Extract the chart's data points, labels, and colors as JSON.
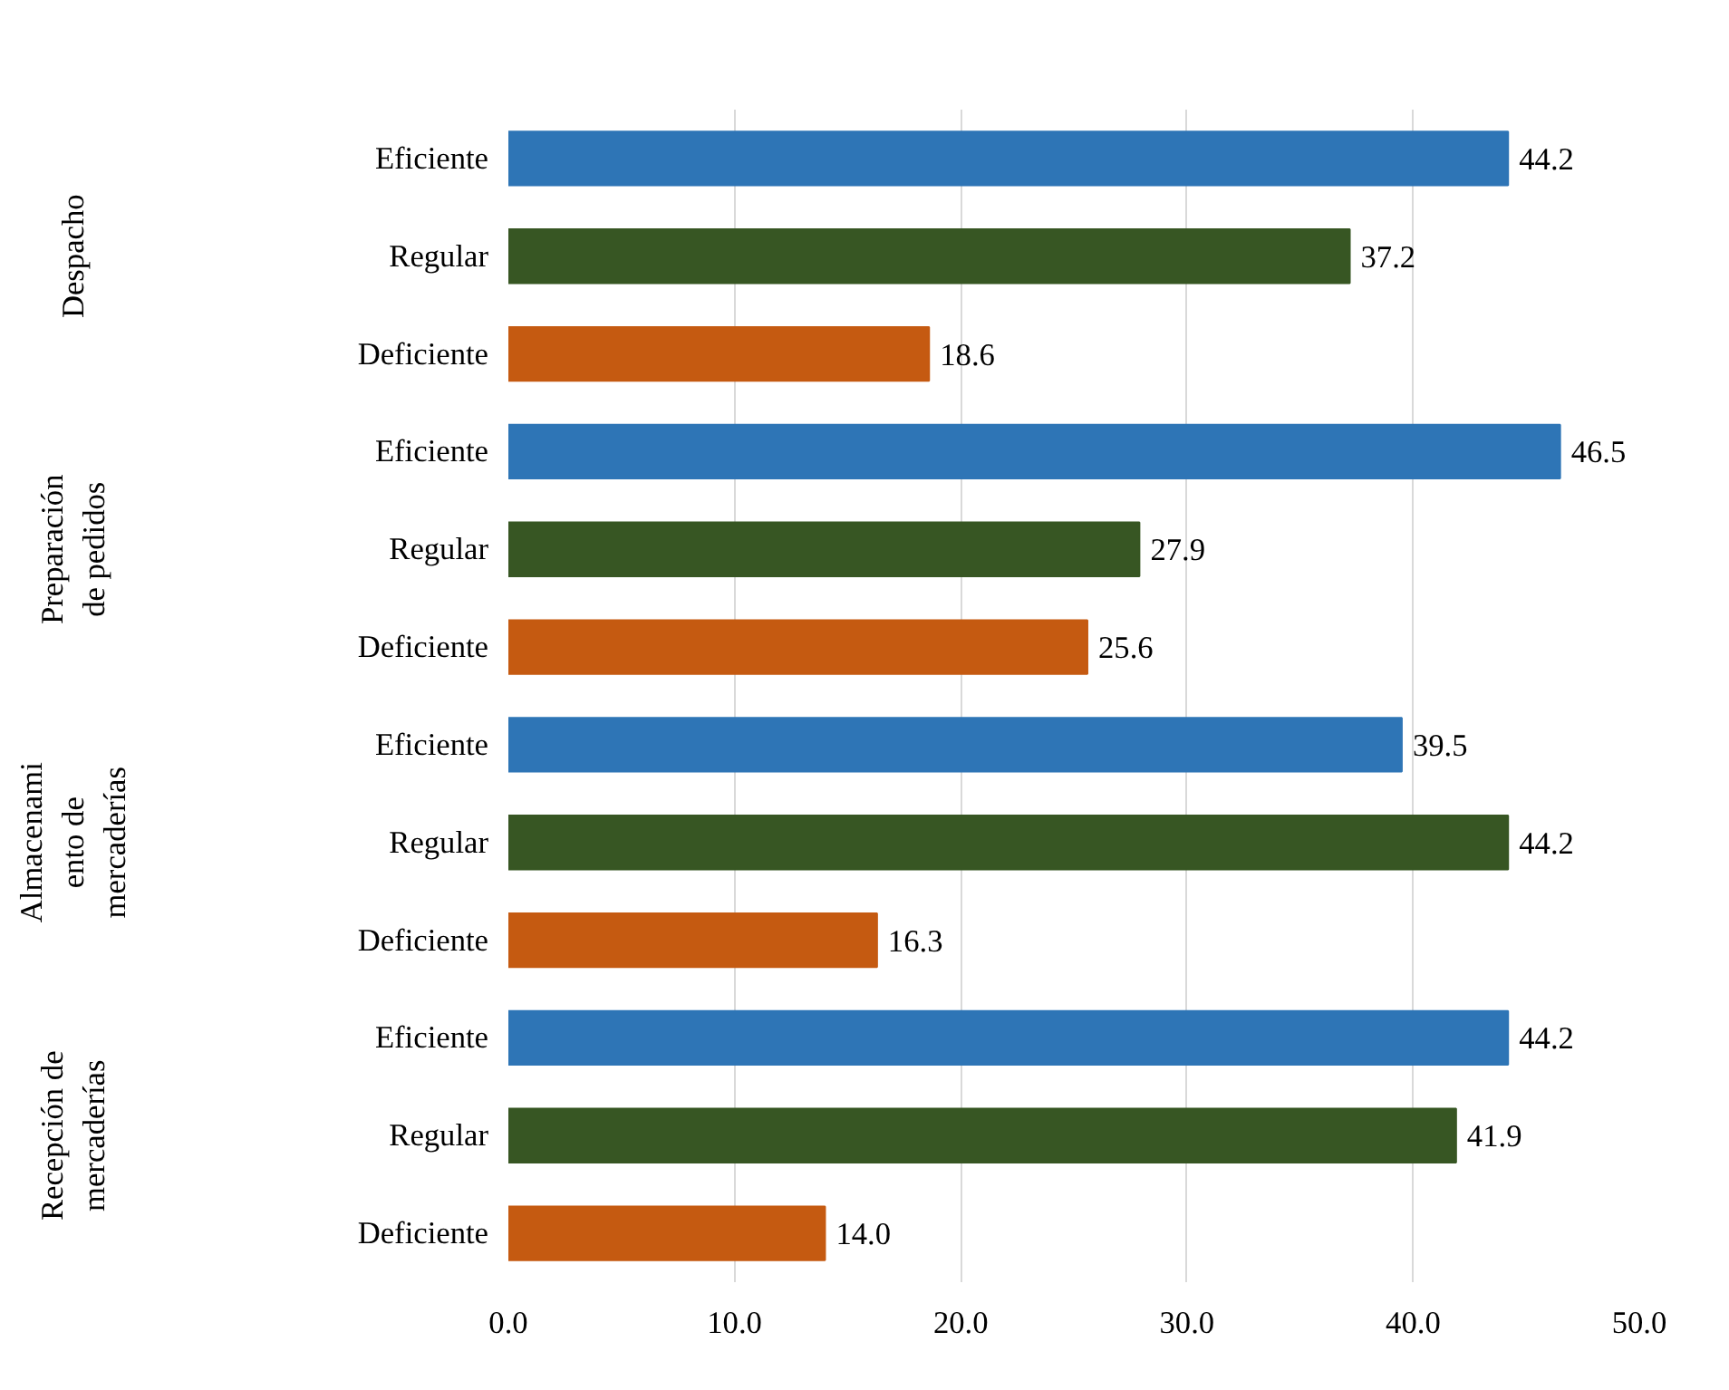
{
  "chart_data": {
    "type": "bar",
    "orientation": "horizontal",
    "categories": [
      "Eficiente",
      "Regular",
      "Deficiente",
      "Eficiente",
      "Regular",
      "Deficiente",
      "Eficiente",
      "Regular",
      "Deficiente",
      "Eficiente",
      "Regular",
      "Deficiente"
    ],
    "values": [
      44.2,
      37.2,
      18.6,
      46.5,
      27.9,
      25.6,
      39.5,
      44.2,
      16.3,
      44.2,
      41.9,
      14.0
    ],
    "value_labels": [
      "44.2",
      "37.2",
      "18.6",
      "46.5",
      "27.9",
      "25.6",
      "39.5",
      "44.2",
      "16.3",
      "44.2",
      "41.9",
      "14.0"
    ],
    "colors": [
      "#2e75b6",
      "#375623",
      "#c55a11",
      "#2e75b6",
      "#375623",
      "#c55a11",
      "#2e75b6",
      "#375623",
      "#c55a11",
      "#2e75b6",
      "#375623",
      "#c55a11"
    ],
    "annotations": [
      "Despacho",
      "Preparación\nde pedidos",
      "Almacenami\nento de\nmercaderías",
      "Recepción de\nmercaderías"
    ],
    "xlim": [
      0,
      50
    ],
    "xticks": [
      {
        "value": 0,
        "label": "0.0"
      },
      {
        "value": 10,
        "label": "10.0"
      },
      {
        "value": 20,
        "label": "20.0"
      },
      {
        "value": 30,
        "label": "30.0"
      },
      {
        "value": 40,
        "label": "40.0"
      },
      {
        "value": 50,
        "label": "50.0"
      }
    ],
    "grid": "x"
  }
}
